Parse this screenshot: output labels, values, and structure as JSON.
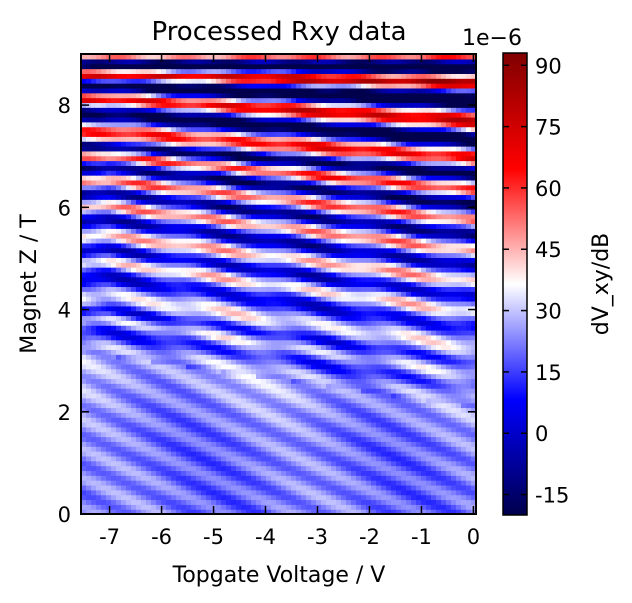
{
  "chart_data": {
    "type": "heatmap",
    "title": "Processed Rxy data",
    "xlabel": "Topgate Voltage / V",
    "ylabel": "Magnet Z / T",
    "xlim": [
      -7.55,
      0.05
    ],
    "ylim": [
      0,
      9
    ],
    "x_ticks": [
      -7,
      -6,
      -5,
      -4,
      -3,
      -2,
      -1,
      0
    ],
    "x_tick_labels": [
      "-7",
      "-6",
      "-5",
      "-4",
      "-3",
      "-2",
      "-1",
      "0"
    ],
    "y_ticks": [
      0,
      2,
      4,
      6,
      8
    ],
    "y_tick_labels": [
      "0",
      "2",
      "4",
      "6",
      "8"
    ],
    "colorbar": {
      "label": "dV_xy/dB",
      "offset_text": "1e−6",
      "range": [
        -20,
        93
      ],
      "ticks": [
        -15,
        0,
        15,
        30,
        45,
        60,
        75,
        90
      ],
      "tick_labels": [
        "-15",
        "0",
        "15",
        "30",
        "45",
        "60",
        "75",
        "90"
      ],
      "colormap": "seismic",
      "colors": [
        "#00004c",
        "#0000ff",
        "#ffffff",
        "#ff0000",
        "#800000"
      ]
    },
    "grid": false,
    "legend": "none",
    "pattern": {
      "description_of_data": "oscillating dV_xy/dB vs gate voltage and field; fringes curve upward toward more negative gate and higher field",
      "background_level": 21,
      "fringe_bands_at_gate_0": [
        2.1,
        2.6,
        3.1,
        3.8,
        4.4,
        5.0,
        5.6,
        6.2,
        6.8,
        7.5,
        8.3,
        8.9
      ],
      "fringe_bands_at_gate_minus7": [
        3.1,
        3.7,
        4.1,
        4.8,
        5.3,
        5.9,
        6.4,
        6.9,
        7.3,
        8.0,
        8.5,
        8.9
      ]
    }
  }
}
